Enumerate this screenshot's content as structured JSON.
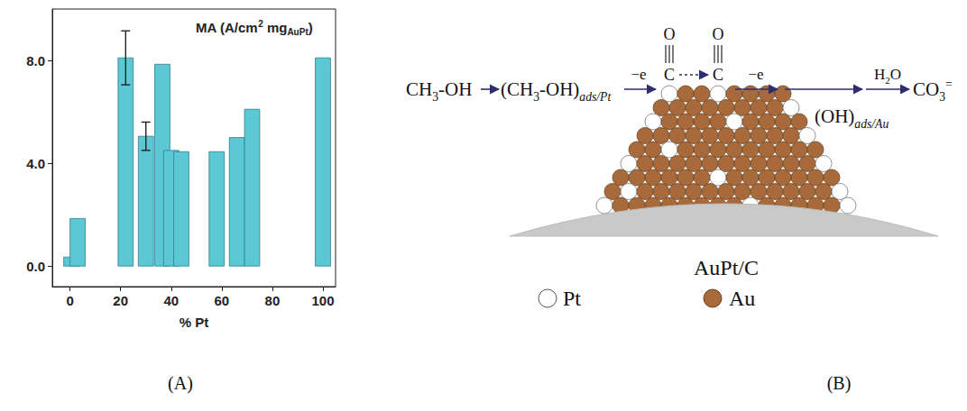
{
  "chart_data": {
    "type": "bar",
    "title_parts": [
      {
        "text": "MA (A/cm",
        "style": "normal"
      },
      {
        "text": "2",
        "style": "sup"
      },
      {
        "text": " mg",
        "style": "normal"
      },
      {
        "text": "AuPt",
        "style": "sub"
      },
      {
        "text": ")",
        "style": "normal"
      }
    ],
    "x_label": "% Pt",
    "x": [
      0.5,
      3,
      22,
      30,
      36.5,
      40,
      44,
      58,
      66,
      72,
      100
    ],
    "values": [
      0.35,
      1.85,
      8.1,
      5.05,
      7.85,
      4.5,
      4.45,
      4.45,
      5.0,
      6.1,
      8.1
    ],
    "errors": [
      null,
      null,
      1.05,
      0.55,
      null,
      null,
      null,
      null,
      null,
      null,
      null
    ],
    "color": "#5cc8d6",
    "xlim": [
      -7,
      105
    ],
    "xticks": [
      0,
      20,
      40,
      60,
      80,
      100
    ],
    "ylim": [
      -0.8,
      10
    ],
    "yticks": [
      {
        "value": 0,
        "label": "0.0"
      },
      {
        "value": 4,
        "label": "4.0"
      },
      {
        "value": 8,
        "label": "8.0"
      }
    ],
    "grid": false
  },
  "panels": [
    "(A)",
    "(B)"
  ],
  "diagram": {
    "reactant": [
      {
        "text": "CH",
        "style": "normal"
      },
      {
        "text": "3",
        "style": "sub"
      },
      {
        "text": "-OH",
        "style": "normal"
      }
    ],
    "adsorbed_methanol": [
      {
        "text": "(CH",
        "style": "normal"
      },
      {
        "text": "3",
        "style": "sub"
      },
      {
        "text": "-OH)",
        "style": "normal"
      },
      {
        "text": "ads/Pt",
        "style": "subi"
      }
    ],
    "step1_label": "−e",
    "co": {
      "o": "O",
      "c": "C"
    },
    "step2_label": "−e",
    "water": [
      {
        "text": "H",
        "style": "normal"
      },
      {
        "text": "2",
        "style": "sub"
      },
      {
        "text": "O",
        "style": "normal"
      }
    ],
    "adsorbed_oh": [
      {
        "text": "(OH)",
        "style": "normal"
      },
      {
        "text": "ads/Au",
        "style": "subi"
      }
    ],
    "product": [
      {
        "text": "CO",
        "style": "normal"
      },
      {
        "text": "3",
        "style": "sub"
      },
      {
        "text": "=",
        "style": "sup"
      }
    ],
    "support_label": "AuPt/C",
    "legend": [
      {
        "label": "Pt",
        "color": "#ffffff"
      },
      {
        "label": "Au",
        "color": "#a86a3a"
      }
    ]
  }
}
